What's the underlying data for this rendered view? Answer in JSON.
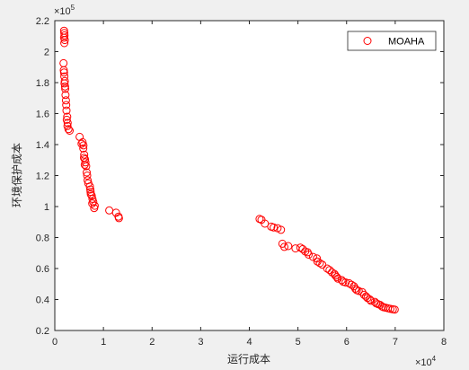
{
  "chart_data": {
    "type": "scatter",
    "title": "",
    "xlabel": "运行成本",
    "ylabel": "环境保护成本",
    "x_exponent_base": "×10",
    "x_exponent_power": "4",
    "y_exponent_base": "×10",
    "y_exponent_power": "5",
    "xlim": [
      0,
      80000
    ],
    "ylim": [
      20000,
      220000
    ],
    "x_scale": 10000,
    "y_scale": 100000,
    "xticks": [
      0,
      10000,
      20000,
      30000,
      40000,
      50000,
      60000,
      70000,
      80000
    ],
    "yticks": [
      20000,
      40000,
      60000,
      80000,
      100000,
      120000,
      140000,
      160000,
      180000,
      200000,
      220000
    ],
    "xtick_labels": [
      "0",
      "1",
      "2",
      "3",
      "4",
      "5",
      "6",
      "7",
      "8"
    ],
    "ytick_labels": [
      "0.2",
      "0.4",
      "0.6",
      "0.8",
      "1",
      "1.2",
      "1.4",
      "1.6",
      "1.8",
      "2",
      "2.2"
    ],
    "grid": false,
    "legend_position": "top-right",
    "series": [
      {
        "name": "MOAHA",
        "color": "#ff0000",
        "marker": "circle-open",
        "points": [
          [
            1900,
            213500
          ],
          [
            1950,
            212000
          ],
          [
            2000,
            210500
          ],
          [
            1900,
            209000
          ],
          [
            2050,
            207500
          ],
          [
            1950,
            205500
          ],
          [
            1800,
            192500
          ],
          [
            1850,
            188000
          ],
          [
            1900,
            186500
          ],
          [
            1950,
            184000
          ],
          [
            2050,
            181000
          ],
          [
            2000,
            179500
          ],
          [
            2100,
            177500
          ],
          [
            2150,
            176000
          ],
          [
            2200,
            172000
          ],
          [
            2300,
            168500
          ],
          [
            2350,
            165500
          ],
          [
            2400,
            162000
          ],
          [
            2550,
            158000
          ],
          [
            2450,
            156000
          ],
          [
            2650,
            154000
          ],
          [
            2600,
            152000
          ],
          [
            2800,
            150000
          ],
          [
            3050,
            149000
          ],
          [
            5100,
            145000
          ],
          [
            5700,
            141500
          ],
          [
            5500,
            140500
          ],
          [
            5900,
            139500
          ],
          [
            5850,
            137500
          ],
          [
            6050,
            133500
          ],
          [
            6000,
            131500
          ],
          [
            6200,
            130500
          ],
          [
            6300,
            128500
          ],
          [
            6150,
            127000
          ],
          [
            6450,
            126000
          ],
          [
            6550,
            122000
          ],
          [
            6650,
            120000
          ],
          [
            6750,
            117000
          ],
          [
            6900,
            115000
          ],
          [
            7200,
            113000
          ],
          [
            7300,
            111000
          ],
          [
            7350,
            109500
          ],
          [
            7400,
            108000
          ],
          [
            7600,
            107000
          ],
          [
            7750,
            105000
          ],
          [
            7900,
            103000
          ],
          [
            7700,
            102000
          ],
          [
            8200,
            100500
          ],
          [
            8100,
            99000
          ],
          [
            11200,
            97500
          ],
          [
            12600,
            96000
          ],
          [
            13100,
            93500
          ],
          [
            13200,
            92500
          ],
          [
            42100,
            92000
          ],
          [
            42500,
            91500
          ],
          [
            43200,
            89000
          ],
          [
            44500,
            87000
          ],
          [
            45000,
            86500
          ],
          [
            45800,
            86000
          ],
          [
            46500,
            85000
          ],
          [
            46800,
            76000
          ],
          [
            47200,
            74000
          ],
          [
            48000,
            74500
          ],
          [
            49500,
            73000
          ],
          [
            50500,
            73500
          ],
          [
            51000,
            72500
          ],
          [
            51500,
            71000
          ],
          [
            52000,
            70500
          ],
          [
            52200,
            69000
          ],
          [
            53100,
            67500
          ],
          [
            53900,
            66500
          ],
          [
            54000,
            64500
          ],
          [
            54500,
            63500
          ],
          [
            55000,
            62500
          ],
          [
            56000,
            60000
          ],
          [
            56500,
            59000
          ],
          [
            57000,
            57500
          ],
          [
            57500,
            56500
          ],
          [
            57700,
            55500
          ],
          [
            58000,
            54500
          ],
          [
            58200,
            53500
          ],
          [
            59000,
            52500
          ],
          [
            59300,
            51500
          ],
          [
            59800,
            51000
          ],
          [
            60500,
            50500
          ],
          [
            61000,
            49500
          ],
          [
            61500,
            48500
          ],
          [
            61800,
            47000
          ],
          [
            62100,
            46000
          ],
          [
            62500,
            45500
          ],
          [
            63200,
            44800
          ],
          [
            63600,
            43000
          ],
          [
            64000,
            42000
          ],
          [
            64300,
            41000
          ],
          [
            64800,
            40000
          ],
          [
            65000,
            39200
          ],
          [
            65800,
            38500
          ],
          [
            66100,
            37500
          ],
          [
            66500,
            37000
          ],
          [
            66900,
            36500
          ],
          [
            67300,
            35500
          ],
          [
            67600,
            35000
          ],
          [
            68000,
            34700
          ],
          [
            68500,
            34400
          ],
          [
            69000,
            34000
          ],
          [
            69500,
            33700
          ],
          [
            69900,
            33500
          ]
        ]
      }
    ]
  }
}
